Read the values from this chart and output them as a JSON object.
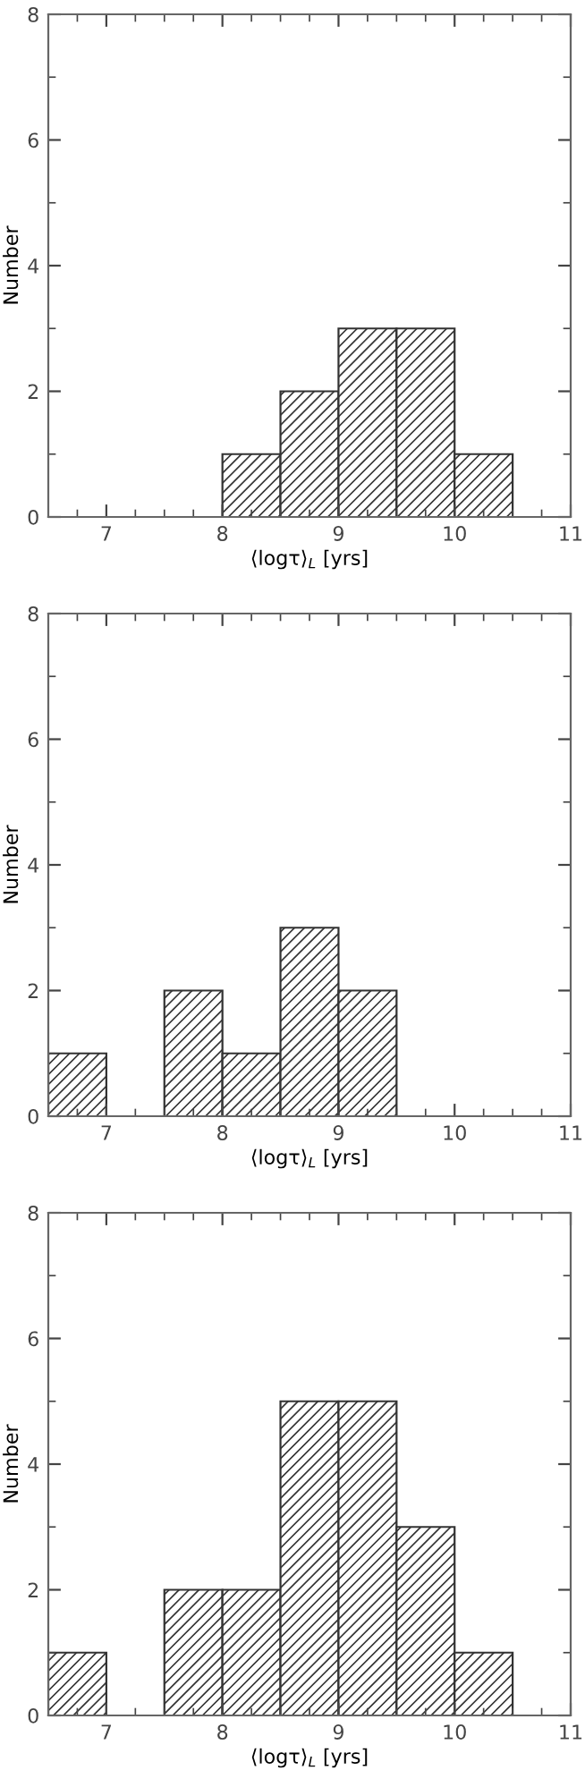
{
  "chart_data": [
    {
      "type": "histogram",
      "bins": [
        8,
        8.5,
        9,
        9.5,
        10,
        10.5
      ],
      "values": [
        1,
        2,
        3,
        3,
        1
      ],
      "xlabel": "⟨logτ⟩$_{L}$ [yrs]",
      "ylabel": "Number",
      "xlim": [
        6.5,
        11
      ],
      "xticks": [
        7,
        8,
        9,
        10,
        11
      ],
      "ylim": [
        0,
        8
      ],
      "yticks": [
        0,
        2,
        4,
        6,
        8
      ],
      "color": "#333333",
      "grid": false
    },
    {
      "type": "histogram",
      "bins": [
        6.5,
        7,
        7.5,
        8,
        8.5,
        9,
        9.5
      ],
      "values": [
        1,
        0,
        2,
        1,
        3,
        2
      ],
      "xlabel": "⟨logτ⟩$_{L}$ [yrs]",
      "ylabel": "Number",
      "xlim": [
        6.5,
        11
      ],
      "xticks": [
        7,
        8,
        9,
        10,
        11
      ],
      "ylim": [
        0,
        8
      ],
      "yticks": [
        0,
        2,
        4,
        6,
        8
      ],
      "color": "#333333",
      "grid": false
    },
    {
      "type": "histogram",
      "bins": [
        6.5,
        7,
        7.5,
        8,
        8.5,
        9,
        9.5,
        10,
        10.5
      ],
      "values": [
        1,
        0,
        2,
        2,
        5,
        5,
        3,
        1
      ],
      "xlabel": "⟨logτ⟩$_{L}$ [yrs]",
      "ylabel": "Number",
      "xlim": [
        6.5,
        11
      ],
      "xticks": [
        7,
        8,
        9,
        10,
        11
      ],
      "ylim": [
        0,
        8
      ],
      "yticks": [
        0,
        2,
        4,
        6,
        8
      ],
      "color": "#333333",
      "grid": false
    }
  ]
}
